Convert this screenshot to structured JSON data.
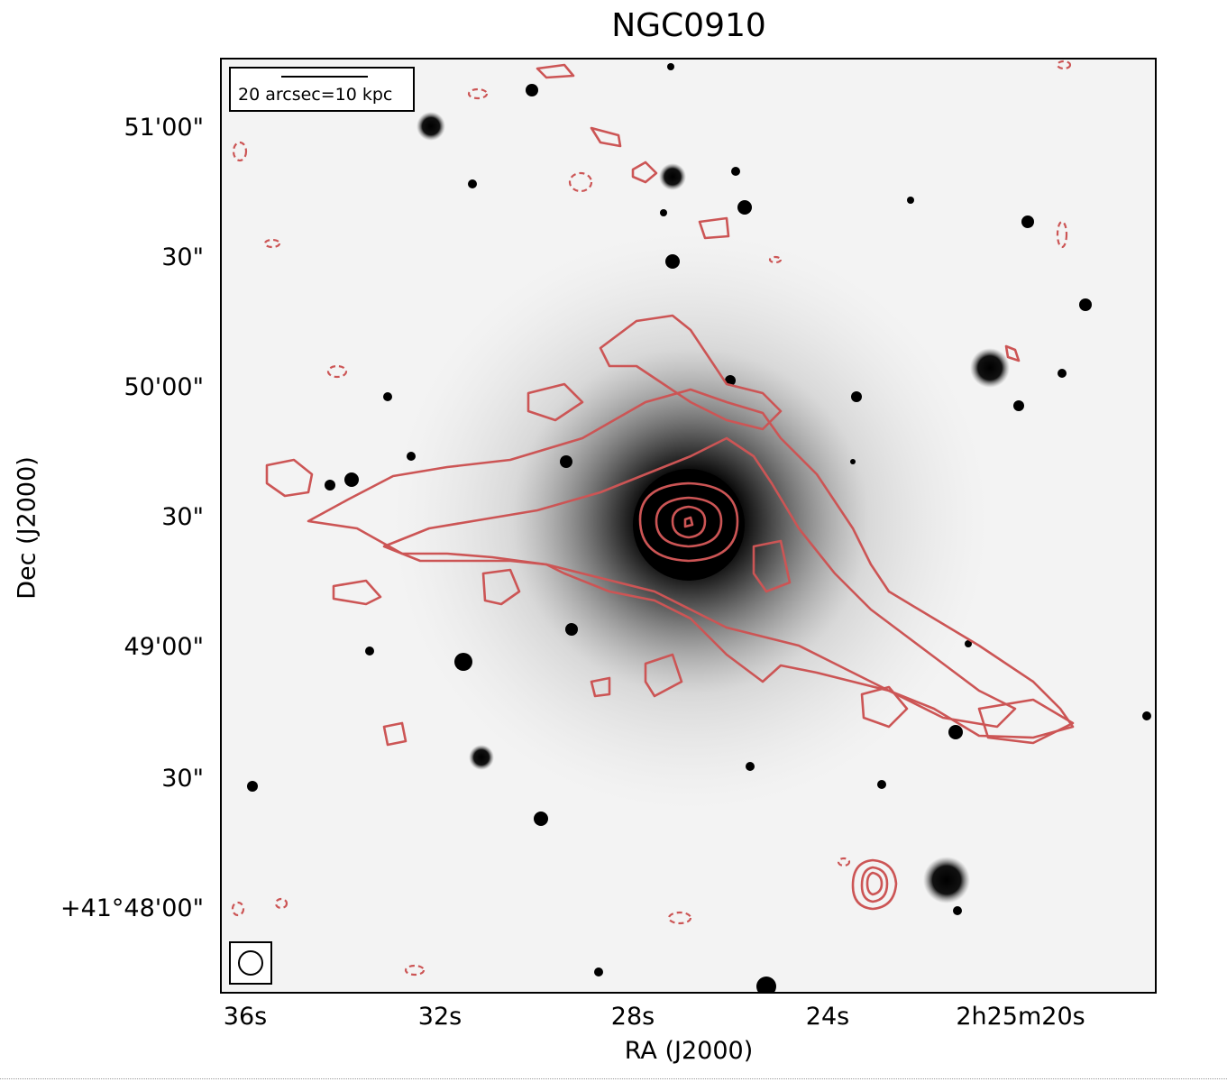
{
  "title": "NGC0910",
  "axes": {
    "xlabel": "RA (J2000)",
    "ylabel": "Dec (J2000)",
    "xticks": [
      "36s",
      "32s",
      "28s",
      "24s",
      "2h25m20s"
    ],
    "yticks": [
      "51'00\"",
      "30\"",
      "50'00\"",
      "30\"",
      "49'00\"",
      "30\"",
      "+41°48'00\""
    ]
  },
  "scale_bar": {
    "label": "20 arcsec=10 kpc"
  },
  "beam": {
    "icon": "circle-beam-icon"
  },
  "colors": {
    "contour": "#cc5555",
    "background": "#f3f3f3",
    "source": "#000000"
  }
}
